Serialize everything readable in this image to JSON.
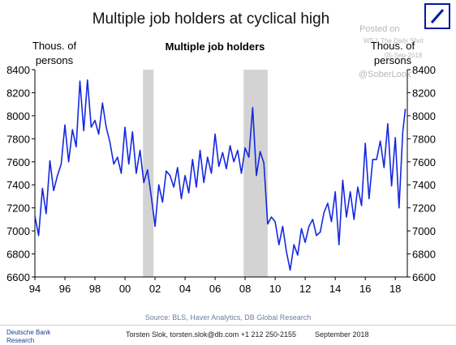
{
  "header": {
    "title": "Multiple job holders at cyclical high"
  },
  "watermark": {
    "posted_on": "Posted on",
    "source": "WSJ: The Daily Shot",
    "date": "05-Sep-2018",
    "handle": "@SoberLook"
  },
  "footer": {
    "source_line": "Source: BLS, Haver Analytics, DB Global Research",
    "bank_name": "Deutsche Bank",
    "bank_division": "Research",
    "author_line": "Torsten Slok, torsten.slok@db.com  +1 212 250-2155",
    "date_line": "September 2018"
  },
  "colors": {
    "series": "#1428e0",
    "recession": "#d3d3d3",
    "brand": "#0018a8"
  },
  "chart_data": {
    "type": "line",
    "title": "Multiple job holders",
    "ylabel_left": "Thous. of persons",
    "ylabel_right": "Thous. of persons",
    "ylabel_left_lines": [
      "Thous. of",
      "persons"
    ],
    "ylabel_right_lines": [
      "Thous. of",
      "persons"
    ],
    "xlim": [
      1994.0,
      2018.8
    ],
    "ylim": [
      6600,
      8400
    ],
    "yticks": [
      6600,
      6800,
      7000,
      7200,
      7400,
      7600,
      7800,
      8000,
      8200,
      8400
    ],
    "ytick_labels": [
      "6600",
      "6800",
      "7000",
      "7200",
      "7400",
      "7600",
      "7800",
      "8000",
      "8200",
      "8400"
    ],
    "xticks": [
      1994,
      1996,
      1998,
      2000,
      2002,
      2004,
      2006,
      2008,
      2010,
      2012,
      2014,
      2016,
      2018
    ],
    "xtick_labels": [
      "94",
      "96",
      "98",
      "00",
      "02",
      "04",
      "06",
      "08",
      "10",
      "12",
      "14",
      "16",
      "18"
    ],
    "recessions": [
      [
        2001.2,
        2001.9
      ],
      [
        2007.9,
        2009.5
      ]
    ],
    "grid": false,
    "legend": "none",
    "series": [
      {
        "x": [
          1994.0,
          1994.25,
          1994.5,
          1994.75,
          1995.0,
          1995.25,
          1995.5,
          1995.75,
          1996.0,
          1996.25,
          1996.5,
          1996.75,
          1997.0,
          1997.25,
          1997.5,
          1997.75,
          1998.0,
          1998.25,
          1998.5,
          1998.75,
          1999.0,
          1999.25,
          1999.5,
          1999.75,
          2000.0,
          2000.25,
          2000.5,
          2000.75,
          2001.0,
          2001.25,
          2001.5,
          2001.75,
          2002.0,
          2002.25,
          2002.5,
          2002.75,
          2003.0,
          2003.25,
          2003.5,
          2003.75,
          2004.0,
          2004.25,
          2004.5,
          2004.75,
          2005.0,
          2005.25,
          2005.5,
          2005.75,
          2006.0,
          2006.25,
          2006.5,
          2006.75,
          2007.0,
          2007.25,
          2007.5,
          2007.75,
          2008.0,
          2008.25,
          2008.5,
          2008.75,
          2009.0,
          2009.25,
          2009.5,
          2009.75,
          2010.0,
          2010.25,
          2010.5,
          2010.75,
          2011.0,
          2011.25,
          2011.5,
          2011.75,
          2012.0,
          2012.25,
          2012.5,
          2012.75,
          2013.0,
          2013.25,
          2013.5,
          2013.75,
          2014.0,
          2014.25,
          2014.5,
          2014.75,
          2015.0,
          2015.25,
          2015.5,
          2015.75,
          2016.0,
          2016.25,
          2016.5,
          2016.75,
          2017.0,
          2017.25,
          2017.5,
          2017.75,
          2018.0,
          2018.25,
          2018.5,
          2018.67
        ],
        "values": [
          7130,
          6960,
          7370,
          7150,
          7610,
          7350,
          7480,
          7580,
          7920,
          7600,
          7880,
          7730,
          8300,
          7870,
          8310,
          7900,
          7960,
          7840,
          8110,
          7900,
          7770,
          7580,
          7640,
          7500,
          7900,
          7580,
          7860,
          7500,
          7700,
          7420,
          7530,
          7300,
          7040,
          7400,
          7250,
          7520,
          7480,
          7380,
          7550,
          7280,
          7480,
          7330,
          7620,
          7380,
          7700,
          7420,
          7640,
          7500,
          7840,
          7560,
          7680,
          7540,
          7740,
          7600,
          7700,
          7500,
          7720,
          7640,
          8070,
          7480,
          7690,
          7590,
          7060,
          7120,
          7080,
          6880,
          7040,
          6820,
          6660,
          6880,
          6790,
          7020,
          6900,
          7040,
          7100,
          6960,
          6990,
          7160,
          7240,
          7080,
          7340,
          6880,
          7440,
          7120,
          7340,
          7100,
          7380,
          7220,
          7760,
          7280,
          7620,
          7620,
          7780,
          7550,
          7930,
          7390,
          7810,
          7200,
          7860,
          8060
        ]
      }
    ]
  }
}
